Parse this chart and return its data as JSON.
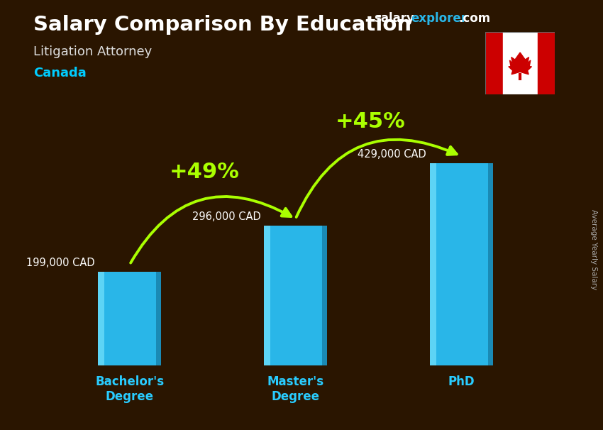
{
  "title": "Salary Comparison By Education",
  "subtitle": "Litigation Attorney",
  "country": "Canada",
  "categories": [
    "Bachelor's\nDegree",
    "Master's\nDegree",
    "PhD"
  ],
  "values": [
    199000,
    296000,
    429000
  ],
  "value_labels": [
    "199,000 CAD",
    "296,000 CAD",
    "429,000 CAD"
  ],
  "pct_labels": [
    "+49%",
    "+45%"
  ],
  "bar_color_main": "#29b6e8",
  "bar_color_light": "#5dd4f5",
  "bar_color_dark": "#1a8ab5",
  "bg_color": "#2a1500",
  "title_color": "#ffffff",
  "subtitle_color": "#dddddd",
  "country_color": "#00ccff",
  "value_label_color": "#ffffff",
  "pct_color": "#aaff00",
  "arrow_color": "#aaff00",
  "xtick_color": "#29ccff",
  "ylabel_text": "Average Yearly Salary",
  "brand_salary_color": "#ffffff",
  "brand_explorer_color": "#29b6e8",
  "brand_com_color": "#ffffff",
  "ylim": [
    0,
    520000
  ],
  "bar_width": 0.38,
  "x_positions": [
    0,
    1,
    2
  ]
}
